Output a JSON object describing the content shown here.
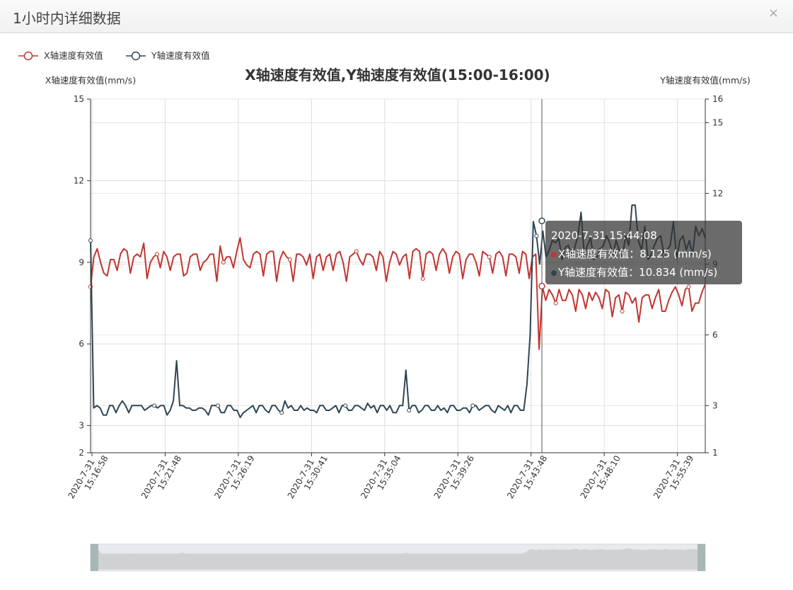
{
  "dialog": {
    "title": "1小时内详细数据",
    "close_glyph": "×"
  },
  "chart_data": {
    "type": "line",
    "title": "X轴速度有效值,Y轴速度有效值(15:00-16:00)",
    "legend": {
      "position": "top-left",
      "items": [
        "X轴速度有效值",
        "Y轴速度有效值"
      ]
    },
    "y_left": {
      "name": "X轴速度有效值(mm/s)",
      "ticks": [
        2,
        3,
        6,
        9,
        12,
        15
      ],
      "range": [
        2,
        15
      ]
    },
    "y_right": {
      "name": "Y轴速度有效值(mm/s)",
      "ticks": [
        1,
        3,
        6,
        9,
        12,
        15,
        16
      ],
      "range": [
        1,
        16
      ]
    },
    "x_ticks": [
      "2020-7-31 15:16:58",
      "2020-7-31 15:21:48",
      "2020-7-31 15:26:19",
      "2020-7-31 15:30:41",
      "2020-7-31 15:35:04",
      "2020-7-31 15:39:26",
      "2020-7-31 15:43:48",
      "2020-7-31 15:48:10",
      "2020-7-31 15:55:39"
    ],
    "grid": true,
    "series": [
      {
        "name": "X轴速度有效值",
        "axis": "left",
        "color": "#c23531",
        "values": [
          8.1,
          9.2,
          9.5,
          9.0,
          8.6,
          8.5,
          9.1,
          9.1,
          8.7,
          9.3,
          9.5,
          9.4,
          8.6,
          9.2,
          9.3,
          9.2,
          9.7,
          8.4,
          9.0,
          9.2,
          9.3,
          8.8,
          9.4,
          9.2,
          8.7,
          9.2,
          9.3,
          9.3,
          8.5,
          8.6,
          9.2,
          9.3,
          9.3,
          8.7,
          9.0,
          9.1,
          9.3,
          9.3,
          8.3,
          9.6,
          9.0,
          9.2,
          9.2,
          8.8,
          9.4,
          9.9,
          9.1,
          8.9,
          8.8,
          9.3,
          9.4,
          9.3,
          8.5,
          9.3,
          9.4,
          9.4,
          8.3,
          9.1,
          9.4,
          9.2,
          9.1,
          8.3,
          9.3,
          9.3,
          9.2,
          8.9,
          9.3,
          8.4,
          9.2,
          9.3,
          8.7,
          9.2,
          9.3,
          8.7,
          9.3,
          9.4,
          9.0,
          8.3,
          9.2,
          9.3,
          9.4,
          9.1,
          8.9,
          9.3,
          9.3,
          9.2,
          8.7,
          9.4,
          9.2,
          8.3,
          9.0,
          9.4,
          9.3,
          8.9,
          9.2,
          9.3,
          8.4,
          9.4,
          9.5,
          9.4,
          8.4,
          9.3,
          9.4,
          9.3,
          8.7,
          9.3,
          9.5,
          9.3,
          8.6,
          9.2,
          9.4,
          9.3,
          8.4,
          9.1,
          9.3,
          9.3,
          9.0,
          8.5,
          9.4,
          9.3,
          9.2,
          8.6,
          9.3,
          9.4,
          9.2,
          8.5,
          9.3,
          9.3,
          9.2,
          8.6,
          9.4,
          9.3,
          8.4,
          9.2,
          9.3,
          5.8,
          8.1,
          7.6,
          8.0,
          7.8,
          7.5,
          8.0,
          7.6,
          7.6,
          8.0,
          7.8,
          7.2,
          8.0,
          7.8,
          7.3,
          7.9,
          7.6,
          7.9,
          7.7,
          7.3,
          8.0,
          7.9,
          7.0,
          7.7,
          7.8,
          7.2,
          7.9,
          7.8,
          7.5,
          7.7,
          6.8,
          7.7,
          7.8,
          7.8,
          7.3,
          7.7,
          8.0,
          7.2,
          7.2,
          7.6,
          7.9,
          8.1,
          7.8,
          7.4,
          8.0,
          8.1,
          7.2,
          7.5,
          7.5,
          7.9,
          8.2
        ]
      },
      {
        "name": "Y轴速度有效值",
        "axis": "right",
        "color": "#2f4554",
        "values": [
          10.0,
          2.9,
          3.0,
          2.9,
          2.6,
          2.6,
          3.0,
          3.0,
          2.7,
          3.0,
          3.2,
          3.0,
          2.7,
          3.0,
          3.0,
          3.0,
          3.0,
          2.8,
          2.9,
          3.0,
          3.0,
          2.9,
          3.0,
          3.0,
          2.6,
          2.8,
          3.2,
          4.9,
          3.0,
          3.0,
          2.9,
          2.9,
          2.8,
          2.8,
          2.9,
          2.9,
          2.8,
          2.6,
          3.0,
          3.0,
          3.0,
          2.7,
          2.7,
          3.0,
          3.0,
          2.8,
          2.8,
          2.5,
          2.7,
          2.8,
          2.9,
          3.0,
          2.7,
          3.0,
          3.0,
          2.8,
          2.7,
          3.0,
          3.0,
          2.8,
          2.7,
          3.2,
          2.9,
          3.0,
          2.8,
          2.8,
          3.0,
          2.8,
          2.9,
          2.8,
          2.8,
          2.7,
          3.0,
          3.0,
          2.8,
          2.8,
          2.9,
          3.0,
          2.7,
          3.0,
          3.0,
          2.8,
          2.8,
          3.0,
          3.0,
          2.9,
          2.8,
          3.1,
          2.9,
          3.0,
          2.7,
          3.0,
          3.0,
          2.8,
          3.0,
          2.7,
          2.7,
          3.0,
          3.0,
          4.5,
          2.8,
          3.0,
          3.0,
          2.7,
          2.8,
          3.0,
          3.0,
          2.8,
          2.8,
          3.0,
          2.8,
          2.9,
          2.7,
          3.0,
          3.0,
          2.8,
          2.8,
          2.9,
          2.9,
          2.7,
          3.0,
          3.0,
          2.8,
          2.9,
          3.0,
          3.0,
          2.8,
          2.7,
          3.0,
          2.9,
          2.8,
          3.0,
          2.7,
          3.0,
          3.0,
          2.8,
          2.8,
          3.9,
          6.0,
          10.8,
          10.2,
          9.0,
          10.4,
          9.3,
          9.6,
          10.0,
          9.9,
          10.1,
          9.2,
          9.7,
          9.8,
          9.4,
          9.7,
          10.2,
          11.2,
          9.4,
          9.8,
          10.1,
          9.2,
          9.3,
          9.6,
          9.8,
          10.2,
          9.9,
          9.4,
          10.0,
          9.6,
          9.3,
          10.2,
          9.8,
          11.5,
          11.5,
          10.0,
          9.6,
          10.6,
          9.2,
          9.4,
          9.8,
          10.1,
          10.2,
          9.4,
          9.6,
          9.8,
          10.8,
          9.2,
          10.0,
          10.2,
          9.6,
          10.0,
          9.4,
          10.6,
          10.2,
          10.5,
          10.1
        ]
      }
    ],
    "tooltip": {
      "time": "2020-7-31 15:44:08",
      "x_line": "X轴速度有效值：8.125 (mm/s)",
      "y_line": "Y轴速度有效值：10.834 (mm/s)"
    },
    "data_zoom": {
      "start": 0,
      "end": 100
    }
  }
}
